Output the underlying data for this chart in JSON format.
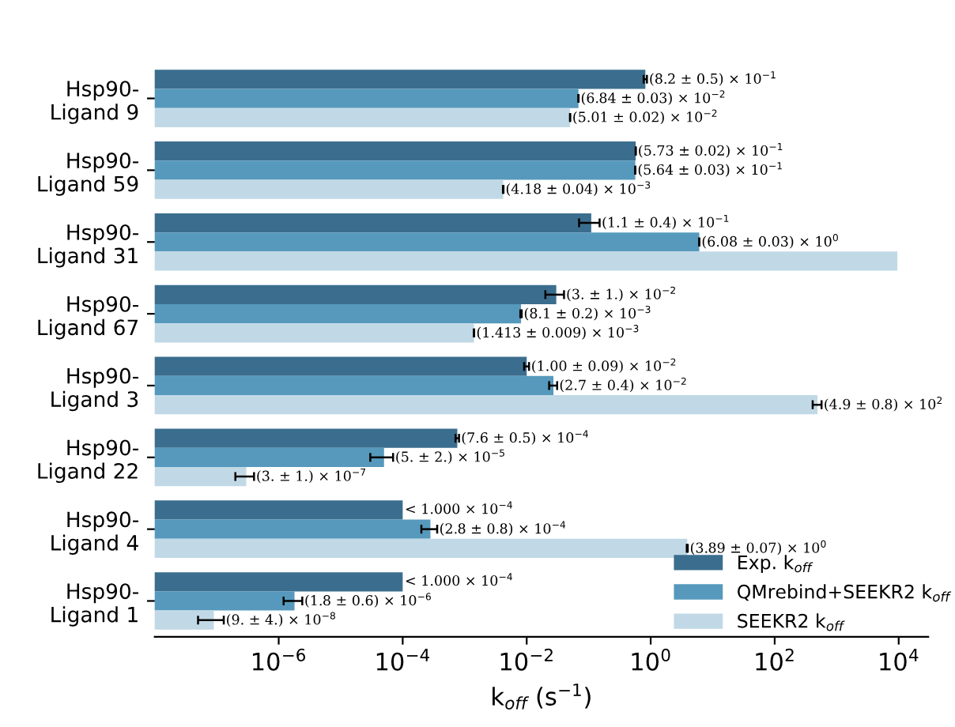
{
  "chart_data": {
    "type": "bar",
    "orientation": "horizontal",
    "log": "x",
    "xlabel": "k$_{off}$ (s$^{−1}$)",
    "categories": [
      "Hsp90-\nLigand 9",
      "Hsp90-\nLigand 59",
      "Hsp90-\nLigand 31",
      "Hsp90-\nLigand 67",
      "Hsp90-\nLigand 3",
      "Hsp90-\nLigand 22",
      "Hsp90-\nLigand 4",
      "Hsp90-\nLigand 1"
    ],
    "series": [
      {
        "name": "Exp. k$_{off}$",
        "color": "#3b6e8e",
        "values": [
          0.82,
          0.573,
          0.11,
          0.03,
          0.01,
          0.00076,
          0.0001,
          0.0001
        ],
        "errors": [
          0.05,
          0.002,
          0.04,
          0.01,
          0.0009,
          5e-05,
          null,
          null
        ],
        "value_labels": [
          "(8.2 ± 0.5) × 10$^{−1}$",
          "(5.73 ± 0.02) × 10$^{−1}$",
          "(1.1 ± 0.4) × 10$^{−1}$",
          "(3. ± 1.) × 10$^{−2}$",
          "(1.00 ± 0.09) × 10$^{−2}$",
          "(7.6 ± 0.5) × 10$^{−4}$",
          "< 1.000 × 10$^{−4}$",
          "< 1.000 × 10$^{−4}$"
        ]
      },
      {
        "name": "QMrebind+SEEKR2 k$_{off}$",
        "color": "#5699bc",
        "values": [
          0.0684,
          0.564,
          6.08,
          0.0081,
          0.027,
          5e-05,
          0.00028,
          1.8e-06
        ],
        "errors": [
          0.0003,
          0.003,
          0.03,
          0.0002,
          0.004,
          2e-05,
          8e-05,
          6e-07
        ],
        "value_labels": [
          "(6.84 ± 0.03) × 10$^{−2}$",
          "(5.64 ± 0.03) × 10$^{−1}$",
          "(6.08 ± 0.03) × 10$^{0}$",
          "(8.1 ± 0.2) × 10$^{−3}$",
          "(2.7 ± 0.4) × 10$^{−2}$",
          "(5. ± 2.) × 10$^{−5}$",
          "(2.8 ± 0.8) × 10$^{−4}$",
          "(1.8 ± 0.6) × 10$^{−6}$"
        ]
      },
      {
        "name": "SEEKR2 k$_{off}$",
        "color": "#c1d9e6",
        "values": [
          0.0501,
          0.00418,
          9530,
          0.001413,
          490,
          3e-07,
          3.89,
          9e-08
        ],
        "errors": [
          0.0002,
          4e-05,
          null,
          9e-06,
          80,
          1e-07,
          0.07,
          4e-08
        ],
        "value_labels": [
          "(5.01 ± 0.02) × 10$^{−2}$",
          "(4.18 ± 0.04) × 10$^{−3}$",
          null,
          "(1.413 ± 0.009) × 10$^{−3}$",
          "(4.9 ± 0.8) × 10$^{2}$",
          "(3. ± 1.) × 10$^{−7}$",
          "(3.89 ± 0.07) × 10$^{0}$",
          "(9. ± 4.) × 10$^{−8}$"
        ]
      }
    ],
    "xlim": [
      1e-08,
      30000
    ],
    "xticks": [
      {
        "value": 1e-06,
        "label": "10$^{−6}$"
      },
      {
        "value": 0.0001,
        "label": "10$^{−4}$"
      },
      {
        "value": 0.01,
        "label": "10$^{−2}$"
      },
      {
        "value": 1,
        "label": "10$^{0}$"
      },
      {
        "value": 100,
        "label": "10$^{2}$"
      },
      {
        "value": 10000,
        "label": "10$^{4}$"
      }
    ],
    "grid": false,
    "legend": "bottom right"
  }
}
